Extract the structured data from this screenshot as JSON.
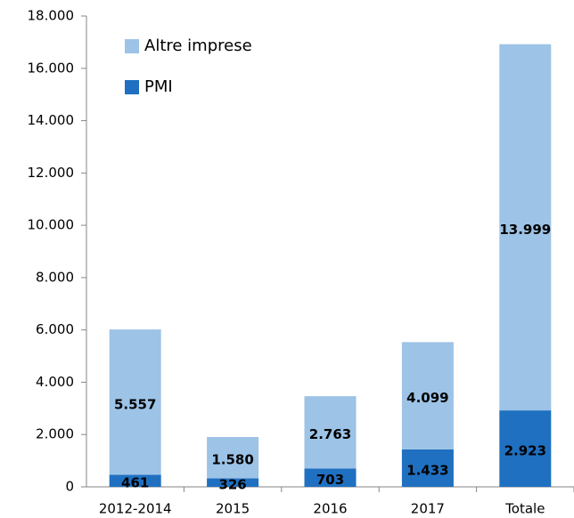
{
  "chart_data": {
    "type": "stacked_bar",
    "categories": [
      "2012-2014",
      "2015",
      "2016",
      "2017",
      "Totale"
    ],
    "series": [
      {
        "name": "PMI",
        "color": "#1f70c1",
        "values": [
          461,
          326,
          703,
          1433,
          2923
        ],
        "value_labels": [
          "461",
          "326",
          "703",
          "1.433",
          "2.923"
        ]
      },
      {
        "name": "Altre imprese",
        "color": "#9dc3e6",
        "values": [
          5557,
          1580,
          2763,
          4099,
          13999
        ],
        "value_labels": [
          "5.557",
          "1.580",
          "2.763",
          "4.099",
          "13.999"
        ]
      }
    ],
    "ylim": [
      0,
      18000
    ],
    "yticks": [
      0,
      {
        "value": 2000,
        "label": "2.000"
      },
      {
        "value": 4000,
        "label": "4.000"
      },
      {
        "value": 6000,
        "label": "6.000"
      },
      {
        "value": 8000,
        "label": "8.000"
      },
      {
        "value": 10000,
        "label": "10.000"
      },
      {
        "value": 12000,
        "label": "12.000"
      },
      {
        "value": 14000,
        "label": "14.000"
      },
      {
        "value": 16000,
        "label": "16.000"
      },
      {
        "value": 18000,
        "label": "18.000"
      }
    ],
    "legend": "upper left"
  }
}
